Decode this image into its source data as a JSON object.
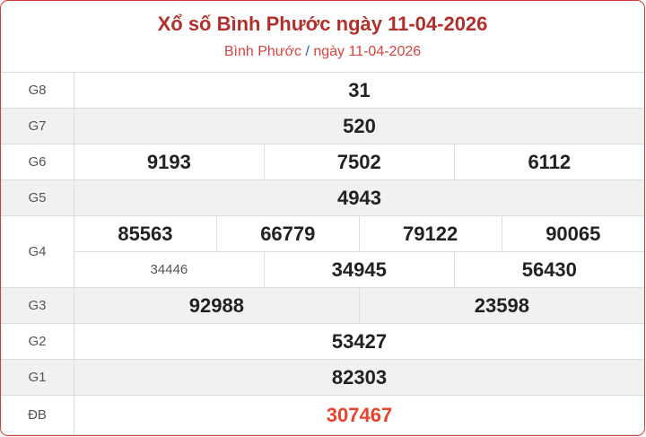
{
  "header": {
    "title": "Xổ số Bình Phước ngày 11-04-2026",
    "breadcrumb_province": "Bình Phước",
    "breadcrumb_separator": "/",
    "breadcrumb_date": "ngày 11-04-2026"
  },
  "prizes": {
    "g8": {
      "label": "G8",
      "values": [
        "31"
      ]
    },
    "g7": {
      "label": "G7",
      "values": [
        "520"
      ]
    },
    "g6": {
      "label": "G6",
      "values": [
        "9193",
        "7502",
        "6112"
      ]
    },
    "g5": {
      "label": "G5",
      "values": [
        "4943"
      ]
    },
    "g4": {
      "label": "G4",
      "values": [
        "85563",
        "66779",
        "79122",
        "90065",
        "34446",
        "34945",
        "56430"
      ]
    },
    "g3": {
      "label": "G3",
      "values": [
        "92988",
        "23598"
      ]
    },
    "g2": {
      "label": "G2",
      "values": [
        "53427"
      ]
    },
    "g1": {
      "label": "G1",
      "values": [
        "82303"
      ]
    },
    "db": {
      "label": "ĐB",
      "values": [
        "307467"
      ]
    }
  },
  "colors": {
    "accent": "#d9393a",
    "special_prize": "#e8432c"
  }
}
